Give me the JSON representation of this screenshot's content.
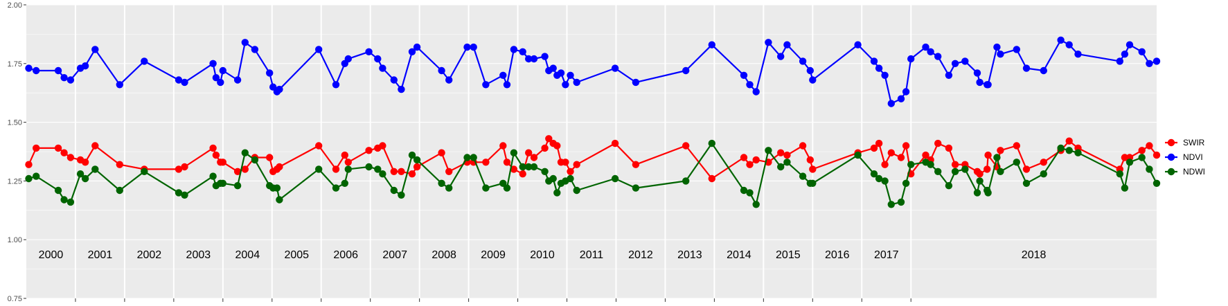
{
  "chart_data": {
    "type": "line",
    "title": "",
    "xlabel": "",
    "ylabel": "",
    "ylim": [
      0.75,
      2.0
    ],
    "y_ticks": [
      "0.75",
      "1.00",
      "1.25",
      "1.50",
      "1.75",
      "2.00"
    ],
    "grid": true,
    "legend_position": "right",
    "facet_years": [
      "2000",
      "2001",
      "2002",
      "2003",
      "2004",
      "2005",
      "2006",
      "2007",
      "2008",
      "2009",
      "2010",
      "2011",
      "2012",
      "2013",
      "2014",
      "2015",
      "2016",
      "2017",
      "2018"
    ],
    "series": [
      {
        "name": "SWIR",
        "color": "#ff0000",
        "points": [
          [
            2000.05,
            1.32
          ],
          [
            2000.2,
            1.39
          ],
          [
            2000.65,
            1.39
          ],
          [
            2000.77,
            1.37
          ],
          [
            2000.9,
            1.35
          ],
          [
            2001.1,
            1.34
          ],
          [
            2001.2,
            1.33
          ],
          [
            2001.4,
            1.4
          ],
          [
            2001.9,
            1.32
          ],
          [
            2002.4,
            1.3
          ],
          [
            2003.1,
            1.3
          ],
          [
            2003.22,
            1.31
          ],
          [
            2003.8,
            1.39
          ],
          [
            2003.86,
            1.36
          ],
          [
            2003.95,
            1.33
          ],
          [
            2004.0,
            1.33
          ],
          [
            2004.3,
            1.29
          ],
          [
            2004.45,
            1.3
          ],
          [
            2004.65,
            1.35
          ],
          [
            2004.95,
            1.35
          ],
          [
            2005.02,
            1.29
          ],
          [
            2005.1,
            1.3
          ],
          [
            2005.15,
            1.31
          ],
          [
            2005.95,
            1.4
          ],
          [
            2006.3,
            1.3
          ],
          [
            2006.48,
            1.36
          ],
          [
            2006.55,
            1.33
          ],
          [
            2006.97,
            1.38
          ],
          [
            2007.15,
            1.39
          ],
          [
            2007.25,
            1.4
          ],
          [
            2007.48,
            1.29
          ],
          [
            2007.63,
            1.29
          ],
          [
            2007.85,
            1.28
          ],
          [
            2007.95,
            1.31
          ],
          [
            2008.45,
            1.37
          ],
          [
            2008.6,
            1.29
          ],
          [
            2008.97,
            1.33
          ],
          [
            2009.1,
            1.33
          ],
          [
            2009.35,
            1.33
          ],
          [
            2009.7,
            1.4
          ],
          [
            2009.78,
            1.33
          ],
          [
            2009.92,
            1.3
          ],
          [
            2010.1,
            1.28
          ],
          [
            2010.22,
            1.37
          ],
          [
            2010.33,
            1.35
          ],
          [
            2010.55,
            1.39
          ],
          [
            2010.63,
            1.43
          ],
          [
            2010.72,
            1.41
          ],
          [
            2010.8,
            1.4
          ],
          [
            2010.88,
            1.33
          ],
          [
            2010.97,
            1.33
          ],
          [
            2011.07,
            1.29
          ],
          [
            2011.2,
            1.32
          ],
          [
            2011.98,
            1.41
          ],
          [
            2012.4,
            1.32
          ],
          [
            2013.42,
            1.4
          ],
          [
            2013.95,
            1.26
          ],
          [
            2014.6,
            1.35
          ],
          [
            2014.72,
            1.32
          ],
          [
            2014.85,
            1.34
          ],
          [
            2015.1,
            1.33
          ],
          [
            2015.35,
            1.37
          ],
          [
            2015.48,
            1.36
          ],
          [
            2015.8,
            1.4
          ],
          [
            2015.95,
            1.34
          ],
          [
            2016.0,
            1.3
          ],
          [
            2016.92,
            1.37
          ],
          [
            2017.25,
            1.39
          ],
          [
            2017.35,
            1.41
          ],
          [
            2017.47,
            1.32
          ],
          [
            2017.6,
            1.37
          ],
          [
            2017.8,
            1.35
          ],
          [
            2017.9,
            1.4
          ],
          [
            2018.0,
            1.28
          ],
          [
            2018.3,
            1.36
          ],
          [
            2018.4,
            1.34
          ],
          [
            2018.55,
            1.41
          ],
          [
            2018.77,
            1.39
          ],
          [
            2018.9,
            1.32
          ],
          [
            2019.1,
            1.32
          ],
          [
            2019.35,
            1.29
          ],
          [
            2019.4,
            1.28
          ],
          [
            2019.55,
            1.3
          ],
          [
            2019.57,
            1.36
          ],
          [
            2019.75,
            1.31
          ],
          [
            2019.82,
            1.38
          ],
          [
            2020.15,
            1.4
          ],
          [
            2020.35,
            1.3
          ],
          [
            2020.7,
            1.33
          ],
          [
            2021.05,
            1.38
          ],
          [
            2021.22,
            1.42
          ],
          [
            2021.4,
            1.39
          ],
          [
            2022.25,
            1.3
          ],
          [
            2022.35,
            1.35
          ],
          [
            2022.45,
            1.35
          ],
          [
            2022.7,
            1.38
          ],
          [
            2022.85,
            1.4
          ],
          [
            2023.0,
            1.36
          ]
        ]
      },
      {
        "name": "NDVI",
        "color": "#0000ff",
        "points": [
          [
            2000.05,
            1.73
          ],
          [
            2000.2,
            1.72
          ],
          [
            2000.65,
            1.72
          ],
          [
            2000.77,
            1.69
          ],
          [
            2000.9,
            1.68
          ],
          [
            2001.1,
            1.73
          ],
          [
            2001.2,
            1.74
          ],
          [
            2001.4,
            1.81
          ],
          [
            2001.9,
            1.66
          ],
          [
            2002.4,
            1.76
          ],
          [
            2003.1,
            1.68
          ],
          [
            2003.22,
            1.67
          ],
          [
            2003.8,
            1.75
          ],
          [
            2003.86,
            1.69
          ],
          [
            2003.95,
            1.67
          ],
          [
            2004.0,
            1.72
          ],
          [
            2004.3,
            1.68
          ],
          [
            2004.45,
            1.84
          ],
          [
            2004.65,
            1.81
          ],
          [
            2004.95,
            1.71
          ],
          [
            2005.02,
            1.65
          ],
          [
            2005.1,
            1.63
          ],
          [
            2005.15,
            1.64
          ],
          [
            2005.95,
            1.81
          ],
          [
            2006.3,
            1.66
          ],
          [
            2006.48,
            1.75
          ],
          [
            2006.55,
            1.77
          ],
          [
            2006.97,
            1.8
          ],
          [
            2007.15,
            1.77
          ],
          [
            2007.25,
            1.73
          ],
          [
            2007.48,
            1.68
          ],
          [
            2007.63,
            1.64
          ],
          [
            2007.85,
            1.8
          ],
          [
            2007.95,
            1.82
          ],
          [
            2008.45,
            1.72
          ],
          [
            2008.6,
            1.68
          ],
          [
            2008.97,
            1.82
          ],
          [
            2009.1,
            1.82
          ],
          [
            2009.35,
            1.66
          ],
          [
            2009.7,
            1.7
          ],
          [
            2009.78,
            1.66
          ],
          [
            2009.92,
            1.81
          ],
          [
            2010.1,
            1.8
          ],
          [
            2010.22,
            1.77
          ],
          [
            2010.33,
            1.77
          ],
          [
            2010.55,
            1.78
          ],
          [
            2010.63,
            1.72
          ],
          [
            2010.72,
            1.73
          ],
          [
            2010.8,
            1.7
          ],
          [
            2010.88,
            1.71
          ],
          [
            2010.97,
            1.66
          ],
          [
            2011.07,
            1.7
          ],
          [
            2011.2,
            1.67
          ],
          [
            2011.98,
            1.73
          ],
          [
            2012.4,
            1.67
          ],
          [
            2013.42,
            1.72
          ],
          [
            2013.95,
            1.83
          ],
          [
            2014.6,
            1.7
          ],
          [
            2014.72,
            1.66
          ],
          [
            2014.85,
            1.63
          ],
          [
            2015.1,
            1.84
          ],
          [
            2015.35,
            1.78
          ],
          [
            2015.48,
            1.83
          ],
          [
            2015.8,
            1.76
          ],
          [
            2015.95,
            1.72
          ],
          [
            2016.0,
            1.68
          ],
          [
            2016.92,
            1.83
          ],
          [
            2017.25,
            1.76
          ],
          [
            2017.35,
            1.73
          ],
          [
            2017.47,
            1.7
          ],
          [
            2017.6,
            1.58
          ],
          [
            2017.8,
            1.6
          ],
          [
            2017.9,
            1.63
          ],
          [
            2018.0,
            1.77
          ],
          [
            2018.3,
            1.82
          ],
          [
            2018.4,
            1.8
          ],
          [
            2018.55,
            1.78
          ],
          [
            2018.77,
            1.7
          ],
          [
            2018.9,
            1.75
          ],
          [
            2019.1,
            1.76
          ],
          [
            2019.35,
            1.71
          ],
          [
            2019.4,
            1.67
          ],
          [
            2019.55,
            1.66
          ],
          [
            2019.57,
            1.66
          ],
          [
            2019.75,
            1.82
          ],
          [
            2019.82,
            1.79
          ],
          [
            2020.15,
            1.81
          ],
          [
            2020.35,
            1.73
          ],
          [
            2020.7,
            1.72
          ],
          [
            2021.05,
            1.85
          ],
          [
            2021.22,
            1.83
          ],
          [
            2021.4,
            1.79
          ],
          [
            2022.25,
            1.76
          ],
          [
            2022.35,
            1.79
          ],
          [
            2022.45,
            1.83
          ],
          [
            2022.7,
            1.8
          ],
          [
            2022.85,
            1.75
          ],
          [
            2023.0,
            1.76
          ]
        ]
      },
      {
        "name": "NDWI",
        "color": "#006400",
        "points": [
          [
            2000.05,
            1.26
          ],
          [
            2000.2,
            1.27
          ],
          [
            2000.65,
            1.21
          ],
          [
            2000.77,
            1.17
          ],
          [
            2000.9,
            1.16
          ],
          [
            2001.1,
            1.28
          ],
          [
            2001.2,
            1.26
          ],
          [
            2001.4,
            1.3
          ],
          [
            2001.9,
            1.21
          ],
          [
            2002.4,
            1.29
          ],
          [
            2003.1,
            1.2
          ],
          [
            2003.22,
            1.19
          ],
          [
            2003.8,
            1.27
          ],
          [
            2003.86,
            1.23
          ],
          [
            2003.95,
            1.24
          ],
          [
            2004.0,
            1.24
          ],
          [
            2004.3,
            1.23
          ],
          [
            2004.45,
            1.37
          ],
          [
            2004.65,
            1.34
          ],
          [
            2004.95,
            1.23
          ],
          [
            2005.02,
            1.22
          ],
          [
            2005.1,
            1.22
          ],
          [
            2005.15,
            1.17
          ],
          [
            2005.95,
            1.3
          ],
          [
            2006.3,
            1.22
          ],
          [
            2006.48,
            1.24
          ],
          [
            2006.55,
            1.3
          ],
          [
            2006.97,
            1.31
          ],
          [
            2007.15,
            1.3
          ],
          [
            2007.25,
            1.28
          ],
          [
            2007.48,
            1.21
          ],
          [
            2007.63,
            1.19
          ],
          [
            2007.85,
            1.36
          ],
          [
            2007.95,
            1.34
          ],
          [
            2008.45,
            1.24
          ],
          [
            2008.6,
            1.22
          ],
          [
            2008.97,
            1.35
          ],
          [
            2009.1,
            1.35
          ],
          [
            2009.35,
            1.22
          ],
          [
            2009.7,
            1.24
          ],
          [
            2009.78,
            1.22
          ],
          [
            2009.92,
            1.37
          ],
          [
            2010.1,
            1.31
          ],
          [
            2010.22,
            1.31
          ],
          [
            2010.33,
            1.31
          ],
          [
            2010.55,
            1.29
          ],
          [
            2010.63,
            1.25
          ],
          [
            2010.72,
            1.26
          ],
          [
            2010.8,
            1.2
          ],
          [
            2010.88,
            1.24
          ],
          [
            2010.97,
            1.25
          ],
          [
            2011.07,
            1.26
          ],
          [
            2011.2,
            1.21
          ],
          [
            2011.98,
            1.26
          ],
          [
            2012.4,
            1.22
          ],
          [
            2013.42,
            1.25
          ],
          [
            2013.95,
            1.41
          ],
          [
            2014.6,
            1.21
          ],
          [
            2014.72,
            1.2
          ],
          [
            2014.85,
            1.15
          ],
          [
            2015.1,
            1.38
          ],
          [
            2015.35,
            1.31
          ],
          [
            2015.48,
            1.33
          ],
          [
            2015.8,
            1.27
          ],
          [
            2015.95,
            1.24
          ],
          [
            2016.0,
            1.24
          ],
          [
            2016.92,
            1.36
          ],
          [
            2017.25,
            1.28
          ],
          [
            2017.35,
            1.26
          ],
          [
            2017.47,
            1.25
          ],
          [
            2017.6,
            1.15
          ],
          [
            2017.8,
            1.16
          ],
          [
            2017.9,
            1.24
          ],
          [
            2018.0,
            1.32
          ],
          [
            2018.3,
            1.33
          ],
          [
            2018.4,
            1.32
          ],
          [
            2018.55,
            1.29
          ],
          [
            2018.77,
            1.23
          ],
          [
            2018.9,
            1.29
          ],
          [
            2019.1,
            1.3
          ],
          [
            2019.35,
            1.2
          ],
          [
            2019.4,
            1.25
          ],
          [
            2019.55,
            1.21
          ],
          [
            2019.57,
            1.2
          ],
          [
            2019.75,
            1.35
          ],
          [
            2019.82,
            1.29
          ],
          [
            2020.15,
            1.33
          ],
          [
            2020.35,
            1.24
          ],
          [
            2020.7,
            1.28
          ],
          [
            2021.05,
            1.39
          ],
          [
            2021.22,
            1.38
          ],
          [
            2021.4,
            1.37
          ],
          [
            2022.25,
            1.28
          ],
          [
            2022.35,
            1.22
          ],
          [
            2022.45,
            1.33
          ],
          [
            2022.7,
            1.35
          ],
          [
            2022.85,
            1.3
          ],
          [
            2023.0,
            1.24
          ]
        ]
      }
    ]
  }
}
